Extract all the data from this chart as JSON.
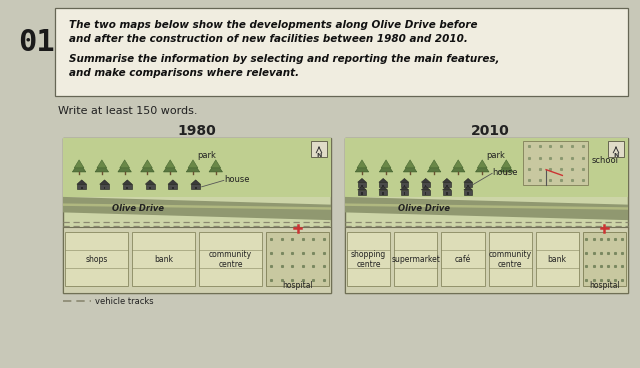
{
  "page_bg": "#c8c8b8",
  "title_num": "01",
  "title_line1": "The two maps below show the developments along Olive Drive before",
  "title_line2": "and after the construction of new facilities between 1980 and 2010.",
  "subtitle_line1": "Summarise the information by selecting and reporting the main features,",
  "subtitle_line2": "and make comparisons where relevant.",
  "write_prompt": "Write at least 150 words.",
  "map1_title": "1980",
  "map2_title": "2010",
  "map_bg": "#cdd5a8",
  "park_bg": "#bfcf90",
  "road_color": "#909870",
  "building_fill": "#ddddb8",
  "building_edge": "#888860",
  "tree_dark": "#5a7840",
  "tree_mid": "#6a8848",
  "house_color": "#4a4a4a",
  "hosp_dot": "#7a8860",
  "school_dot": "#8a9870",
  "vehicle_color": "#8a8870",
  "text_dark": "#222222",
  "text_med": "#444444",
  "title_box_bg": "#f0ede0",
  "map1_bottom": [
    "shops",
    "bank",
    "community\ncentre",
    "hospital"
  ],
  "map2_bottom": [
    "shopping\ncentre",
    "supermarket",
    "café",
    "community\ncentre",
    "bank",
    "hospital"
  ],
  "olive_label": "Olive Drive",
  "park_label": "park",
  "house_label": "house",
  "school_label": "school",
  "veh_label": "vehicle tracks"
}
